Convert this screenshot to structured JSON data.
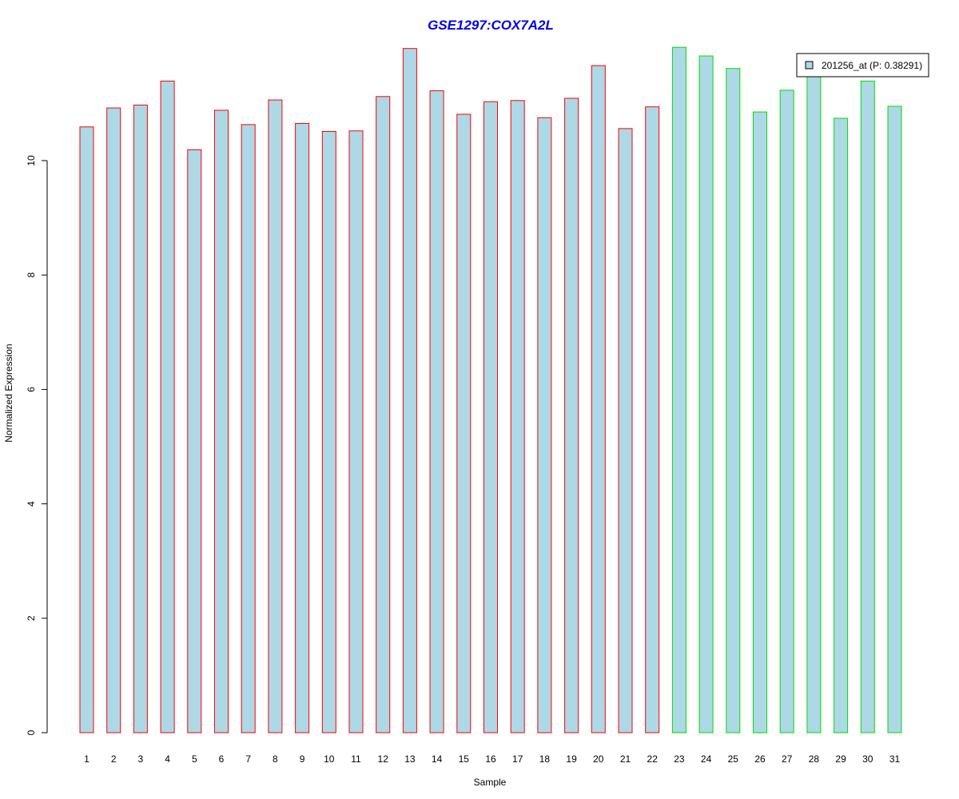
{
  "chart_data": {
    "type": "bar",
    "title": "GSE1297:COX7A2L",
    "xlabel": "Sample",
    "ylabel": "Normalized Expression",
    "categories": [
      "1",
      "2",
      "3",
      "4",
      "5",
      "6",
      "7",
      "8",
      "9",
      "10",
      "11",
      "12",
      "13",
      "14",
      "15",
      "16",
      "17",
      "18",
      "19",
      "20",
      "21",
      "22",
      "23",
      "24",
      "25",
      "26",
      "27",
      "28",
      "29",
      "30",
      "31"
    ],
    "series": [
      {
        "name": "201256_at (P: 0.38291)",
        "values": [
          10.59,
          10.92,
          10.97,
          11.39,
          10.19,
          10.88,
          10.63,
          11.06,
          10.65,
          10.51,
          10.52,
          11.12,
          11.96,
          11.22,
          10.81,
          11.03,
          11.05,
          10.75,
          11.09,
          11.66,
          10.56,
          10.94,
          11.98,
          11.83,
          11.61,
          10.85,
          11.23,
          11.52,
          10.74,
          11.39,
          10.95
        ]
      }
    ],
    "group_colors": [
      "#ff0000",
      "#ff0000",
      "#ff0000",
      "#ff0000",
      "#ff0000",
      "#ff0000",
      "#ff0000",
      "#ff0000",
      "#ff0000",
      "#ff0000",
      "#ff0000",
      "#ff0000",
      "#ff0000",
      "#ff0000",
      "#ff0000",
      "#ff0000",
      "#ff0000",
      "#ff0000",
      "#ff0000",
      "#ff0000",
      "#ff0000",
      "#ff0000",
      "#00dd00",
      "#00dd00",
      "#00dd00",
      "#00dd00",
      "#00dd00",
      "#00dd00",
      "#00dd00",
      "#00dd00",
      "#00dd00"
    ],
    "yticks": [
      0,
      2,
      4,
      6,
      8,
      10
    ],
    "ylim": [
      0,
      12
    ],
    "grid": false,
    "legend_position": "top-right",
    "colors": {
      "bar_fill": "#add8e6",
      "title": "#0000ee",
      "axis": "#000000"
    }
  }
}
